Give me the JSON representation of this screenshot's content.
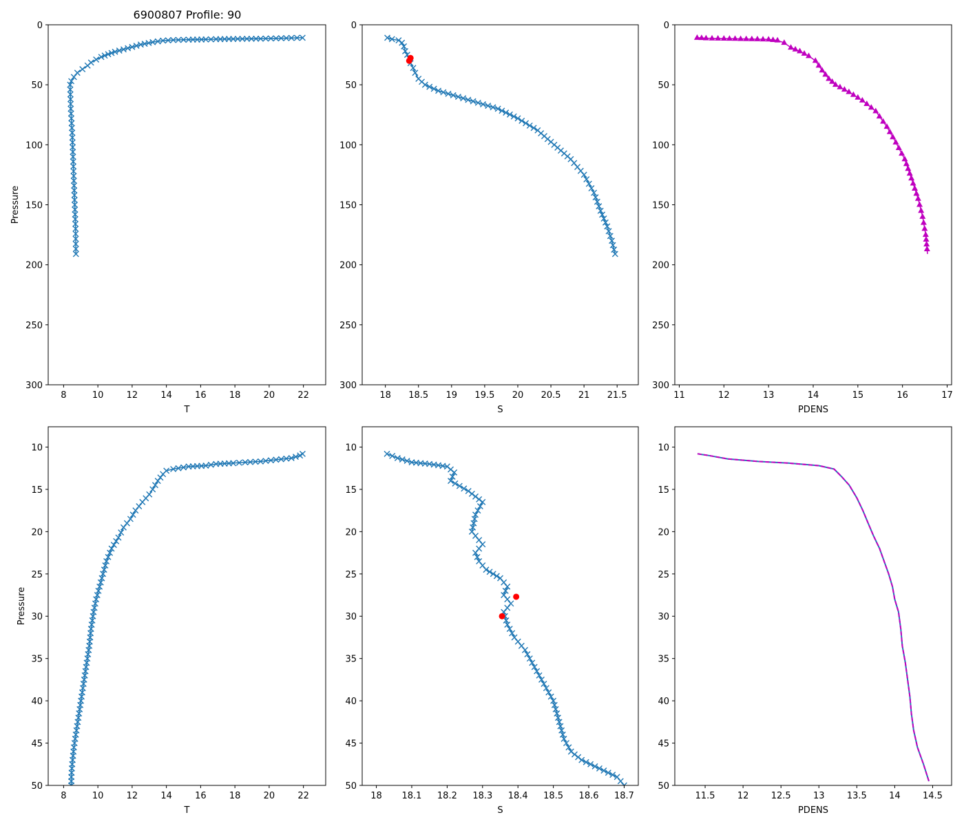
{
  "figure": {
    "title": "6900807 Profile: 90"
  },
  "colors": {
    "series": "#1f77b4",
    "pdens": "#bf00bf",
    "flag": "#ff0000",
    "axes": "#000000"
  },
  "chart_data": [
    {
      "id": "top-T",
      "type": "line",
      "marker": "x",
      "xlabel": "T",
      "ylabel": "Pressure",
      "xlim": [
        7.1,
        23.3
      ],
      "xticks": [
        8,
        10,
        12,
        14,
        16,
        18,
        20,
        22
      ],
      "ylim": [
        300,
        0
      ],
      "yticks": [
        0,
        50,
        100,
        150,
        200,
        250,
        300
      ],
      "series": [
        {
          "name": "T",
          "x": [
            21.95,
            21.3,
            20.4,
            19.5,
            17.9,
            16.9,
            16.3,
            15.3,
            14.4,
            13.8,
            13.2,
            12.5,
            12.0,
            11.5,
            11.0,
            10.6,
            10.2,
            9.9,
            9.6,
            9.4,
            9.1,
            8.8,
            8.6,
            8.45,
            8.38,
            8.42,
            8.5,
            8.55,
            8.6,
            8.65,
            8.7,
            8.72
          ],
          "y": [
            10.8,
            11.0,
            11.3,
            11.6,
            11.8,
            12.0,
            12.2,
            12.4,
            12.7,
            13.2,
            14.5,
            16.5,
            18.5,
            20.5,
            22.5,
            24.5,
            26.8,
            29.0,
            31.5,
            34.0,
            37.0,
            40.0,
            43.5,
            47.0,
            50.0,
            70.0,
            90.0,
            110.0,
            130.0,
            150.0,
            170.0,
            191.0
          ]
        }
      ]
    },
    {
      "id": "top-S",
      "type": "line",
      "marker": "x",
      "xlabel": "S",
      "ylabel": "",
      "xlim": [
        17.65,
        21.82
      ],
      "xticks": [
        18.0,
        18.5,
        19.0,
        19.5,
        20.0,
        20.5,
        21.0,
        21.5
      ],
      "ylim": [
        300,
        0
      ],
      "yticks": [
        0,
        50,
        100,
        150,
        200,
        250,
        300
      ],
      "series": [
        {
          "name": "S",
          "x": [
            18.03,
            18.1,
            18.2,
            18.25,
            18.28,
            18.3,
            18.33,
            18.36,
            18.38,
            18.42,
            18.45,
            18.5,
            18.6,
            18.8,
            19.1,
            19.4,
            19.7,
            20.0,
            20.3,
            20.55,
            20.8,
            21.0,
            21.15,
            21.25,
            21.35,
            21.42,
            21.47
          ],
          "y": [
            10.8,
            12.0,
            13.0,
            15.0,
            18.0,
            22.0,
            25.0,
            28.0,
            32.0,
            36.0,
            40.0,
            45.0,
            50.0,
            55.0,
            60.0,
            65.0,
            70.0,
            78.0,
            88.0,
            100.0,
            112.0,
            125.0,
            140.0,
            155.0,
            168.0,
            180.0,
            191.0
          ]
        }
      ],
      "flagged": {
        "x": [
          18.38,
          18.36
        ],
        "y": [
          27.7,
          30.0
        ]
      }
    },
    {
      "id": "top-PDENS",
      "type": "line",
      "marker": "triangle",
      "xlabel": "PDENS",
      "ylabel": "",
      "xlim": [
        10.9,
        17.1
      ],
      "xticks": [
        11,
        12,
        13,
        14,
        15,
        16,
        17
      ],
      "ylim": [
        300,
        0
      ],
      "yticks": [
        0,
        50,
        100,
        150,
        200,
        250,
        300
      ],
      "series": [
        {
          "name": "PDENS",
          "x": [
            11.4,
            11.6,
            12.0,
            12.5,
            13.0,
            13.2,
            13.35,
            13.5,
            13.7,
            13.9,
            14.05,
            14.2,
            14.35,
            14.5,
            14.8,
            15.1,
            15.4,
            15.65,
            15.85,
            16.05,
            16.2,
            16.35,
            16.45,
            16.52,
            16.56
          ],
          "y": [
            10.8,
            11.2,
            11.5,
            11.8,
            12.2,
            13.0,
            15.0,
            19.0,
            22.0,
            26.0,
            30.0,
            38.0,
            45.0,
            50.0,
            56.0,
            63.0,
            72.0,
            85.0,
            98.0,
            112.0,
            128.0,
            145.0,
            160.0,
            175.0,
            191.0
          ]
        }
      ]
    },
    {
      "id": "bottom-T",
      "type": "line",
      "marker": "x",
      "xlabel": "T",
      "ylabel": "Pressure",
      "xlim": [
        7.1,
        23.3
      ],
      "xticks": [
        8,
        10,
        12,
        14,
        16,
        18,
        20,
        22
      ],
      "ylim": [
        50,
        7.6
      ],
      "yticks": [
        10,
        15,
        20,
        25,
        30,
        35,
        40,
        45,
        50
      ],
      "series": [
        {
          "name": "T",
          "x": [
            21.95,
            21.8,
            21.3,
            20.4,
            19.5,
            18.6,
            17.9,
            16.9,
            16.3,
            15.3,
            14.4,
            14.0,
            13.8,
            13.5,
            13.2,
            13.0,
            12.6,
            12.2,
            11.9,
            11.5,
            11.2,
            10.8,
            10.5,
            10.3,
            10.1,
            9.9,
            9.75,
            9.6,
            9.5,
            9.35,
            9.2,
            9.05,
            8.9,
            8.75,
            8.6,
            8.5,
            8.45,
            8.45
          ],
          "y": [
            10.8,
            11.0,
            11.3,
            11.5,
            11.7,
            11.8,
            11.9,
            12.0,
            12.2,
            12.3,
            12.6,
            12.8,
            13.2,
            14.0,
            15.0,
            15.6,
            16.5,
            17.5,
            18.5,
            19.5,
            20.7,
            22.0,
            23.5,
            25.0,
            26.5,
            28.0,
            29.5,
            31.5,
            33.5,
            35.5,
            37.5,
            39.5,
            41.5,
            43.5,
            45.5,
            47.5,
            49.0,
            50.0
          ]
        }
      ]
    },
    {
      "id": "bottom-S",
      "type": "line",
      "marker": "x",
      "xlabel": "S",
      "ylabel": "",
      "xlim": [
        17.96,
        18.74
      ],
      "xticks": [
        18.0,
        18.1,
        18.2,
        18.3,
        18.4,
        18.5,
        18.6,
        18.7
      ],
      "ylim": [
        50,
        7.6
      ],
      "yticks": [
        10,
        15,
        20,
        25,
        30,
        35,
        40,
        45,
        50
      ],
      "series": [
        {
          "name": "S",
          "x": [
            18.03,
            18.06,
            18.1,
            18.15,
            18.2,
            18.22,
            18.21,
            18.26,
            18.3,
            18.28,
            18.27,
            18.3,
            18.28,
            18.29,
            18.31,
            18.33,
            18.35,
            18.37,
            18.36,
            18.38,
            18.36,
            18.37,
            18.39,
            18.42,
            18.44,
            18.46,
            18.48,
            18.5,
            18.51,
            18.52,
            18.53,
            18.55,
            18.58,
            18.63,
            18.68,
            18.7
          ],
          "y": [
            10.8,
            11.3,
            11.8,
            12.0,
            12.3,
            13.0,
            14.0,
            15.2,
            16.5,
            18.0,
            20.0,
            21.5,
            22.5,
            23.5,
            24.5,
            25.0,
            25.5,
            26.5,
            27.5,
            28.5,
            29.5,
            31.0,
            32.5,
            34.0,
            35.5,
            37.0,
            38.5,
            40.0,
            41.5,
            43.0,
            44.5,
            46.0,
            47.0,
            48.0,
            49.0,
            50.0
          ]
        }
      ],
      "flagged": {
        "x": [
          18.395,
          18.355
        ],
        "y": [
          27.7,
          30.0
        ]
      }
    },
    {
      "id": "bottom-PDENS",
      "type": "line",
      "marker": "dashed",
      "xlabel": "PDENS",
      "ylabel": "",
      "xlim": [
        11.1,
        14.75
      ],
      "xticks": [
        11.5,
        12.0,
        12.5,
        13.0,
        13.5,
        14.0,
        14.5
      ],
      "ylim": [
        50,
        7.6
      ],
      "yticks": [
        10,
        15,
        20,
        25,
        30,
        35,
        40,
        45,
        50
      ],
      "series": [
        {
          "name": "PDENS",
          "x": [
            11.4,
            11.55,
            11.8,
            12.2,
            12.6,
            13.0,
            13.2,
            13.3,
            13.4,
            13.5,
            13.58,
            13.65,
            13.72,
            13.8,
            13.86,
            13.92,
            13.97,
            14.0,
            14.05,
            14.08,
            14.1,
            14.14,
            14.17,
            14.2,
            14.22,
            14.25,
            14.3,
            14.38,
            14.45
          ],
          "y": [
            10.8,
            11.0,
            11.4,
            11.7,
            11.9,
            12.2,
            12.6,
            13.5,
            14.5,
            16.0,
            17.5,
            19.0,
            20.5,
            22.0,
            23.5,
            25.0,
            26.5,
            28.0,
            29.5,
            31.5,
            33.5,
            35.5,
            37.5,
            39.5,
            41.5,
            43.5,
            45.5,
            47.5,
            49.5
          ]
        }
      ]
    }
  ]
}
